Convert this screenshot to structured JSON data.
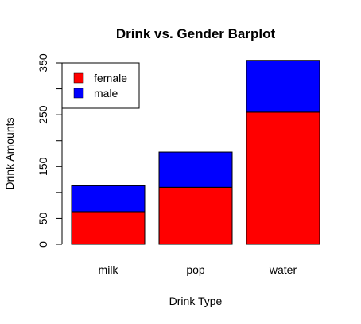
{
  "chart_data": {
    "type": "bar",
    "stacked": true,
    "title": "Drink vs. Gender Barplot",
    "xlabel": "Drink Type",
    "ylabel": "Drink Amounts",
    "categories": [
      "milk",
      "pop",
      "water"
    ],
    "series": [
      {
        "name": "female",
        "color": "#ff0000",
        "values": [
          63,
          110,
          255
        ]
      },
      {
        "name": "male",
        "color": "#0000ff",
        "values": [
          50,
          68,
          100
        ]
      }
    ],
    "ylim": [
      0,
      350
    ],
    "yticks": [
      0,
      50,
      100,
      150,
      200,
      250,
      300,
      350
    ],
    "ytick_labels": [
      "0",
      "50",
      "",
      "150",
      "",
      "250",
      "",
      "350"
    ],
    "legend_position": "top-left",
    "grid": false
  }
}
